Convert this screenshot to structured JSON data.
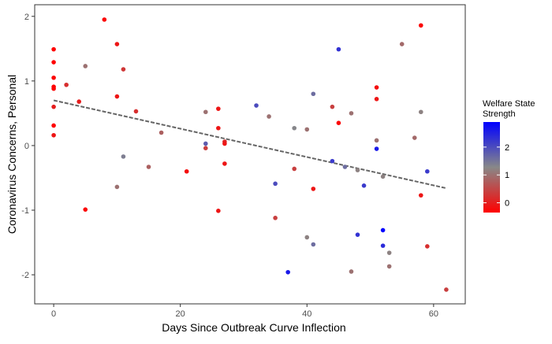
{
  "chart_data": {
    "type": "scatter",
    "title": "",
    "xlabel": "Days Since Outbreak Curve Inflection",
    "ylabel": "Coronavirus Concerns, Personal",
    "xlim": [
      -3,
      65
    ],
    "ylim": [
      -2.45,
      2.18
    ],
    "x_ticks": [
      0,
      20,
      40,
      60
    ],
    "y_ticks": [
      -2,
      -1,
      0,
      1,
      2
    ],
    "grid": false,
    "legend": {
      "title_lines": [
        "Welfare State",
        "Strength"
      ],
      "ticks": [
        0,
        1,
        2
      ],
      "min": -0.35,
      "max": 2.9,
      "colors": {
        "low": "#FF0000",
        "mid": "#888888",
        "high": "#0000FF"
      },
      "placement": "right"
    },
    "trend": {
      "style": "dashed",
      "color": "#666666",
      "x": [
        0,
        62
      ],
      "y": [
        0.7,
        -0.66
      ]
    },
    "points": [
      {
        "x": 0,
        "y": 1.49,
        "c": -0.35
      },
      {
        "x": 0,
        "y": 1.29,
        "c": -0.35
      },
      {
        "x": 0,
        "y": 1.05,
        "c": -0.3
      },
      {
        "x": 0,
        "y": 0.91,
        "c": -0.35
      },
      {
        "x": 0,
        "y": 0.88,
        "c": -0.3
      },
      {
        "x": 0,
        "y": 0.6,
        "c": 0.0
      },
      {
        "x": 0,
        "y": 0.31,
        "c": -0.35
      },
      {
        "x": 0,
        "y": 0.16,
        "c": -0.1
      },
      {
        "x": 2,
        "y": 0.94,
        "c": 0.2
      },
      {
        "x": 4,
        "y": 0.68,
        "c": 0.0
      },
      {
        "x": 5,
        "y": 1.23,
        "c": 1.0
      },
      {
        "x": 5,
        "y": -0.99,
        "c": -0.3
      },
      {
        "x": 8,
        "y": 1.95,
        "c": -0.3
      },
      {
        "x": 10,
        "y": 1.57,
        "c": -0.1
      },
      {
        "x": 10,
        "y": 0.76,
        "c": -0.1
      },
      {
        "x": 10,
        "y": -0.64,
        "c": 1.0
      },
      {
        "x": 11,
        "y": 1.18,
        "c": 0.3
      },
      {
        "x": 11,
        "y": -0.17,
        "c": 1.4
      },
      {
        "x": 13,
        "y": 0.53,
        "c": 0.2
      },
      {
        "x": 15,
        "y": -0.33,
        "c": 0.8
      },
      {
        "x": 17,
        "y": 0.2,
        "c": 0.8
      },
      {
        "x": 21,
        "y": -0.4,
        "c": -0.2
      },
      {
        "x": 24,
        "y": 0.52,
        "c": 1.0
      },
      {
        "x": 24,
        "y": 0.03,
        "c": 1.8
      },
      {
        "x": 24,
        "y": -0.04,
        "c": 0.4
      },
      {
        "x": 26,
        "y": 0.57,
        "c": -0.1
      },
      {
        "x": 26,
        "y": 0.27,
        "c": -0.1
      },
      {
        "x": 26,
        "y": -1.01,
        "c": -0.1
      },
      {
        "x": 27,
        "y": 0.06,
        "c": 0.1
      },
      {
        "x": 27,
        "y": 0.03,
        "c": -0.1
      },
      {
        "x": 27,
        "y": -0.28,
        "c": -0.1
      },
      {
        "x": 32,
        "y": 0.62,
        "c": 2.0
      },
      {
        "x": 34,
        "y": 0.45,
        "c": 1.0
      },
      {
        "x": 35,
        "y": -0.59,
        "c": 2.0
      },
      {
        "x": 35,
        "y": -1.12,
        "c": 0.4
      },
      {
        "x": 37,
        "y": -1.96,
        "c": 2.6
      },
      {
        "x": 38,
        "y": 0.27,
        "c": 1.3
      },
      {
        "x": 38,
        "y": -0.36,
        "c": 0.4
      },
      {
        "x": 40,
        "y": 0.25,
        "c": 1.0
      },
      {
        "x": 40,
        "y": -1.42,
        "c": 1.2
      },
      {
        "x": 41,
        "y": 0.8,
        "c": 1.6
      },
      {
        "x": 41,
        "y": -0.67,
        "c": -0.1
      },
      {
        "x": 41,
        "y": -1.53,
        "c": 1.6
      },
      {
        "x": 44,
        "y": 0.6,
        "c": 0.4
      },
      {
        "x": 44,
        "y": -0.24,
        "c": 2.2
      },
      {
        "x": 45,
        "y": 1.49,
        "c": 2.3
      },
      {
        "x": 45,
        "y": 0.35,
        "c": -0.3
      },
      {
        "x": 46,
        "y": -0.33,
        "c": 1.6
      },
      {
        "x": 47,
        "y": 0.5,
        "c": 1.0
      },
      {
        "x": 47,
        "y": -1.95,
        "c": 1.0
      },
      {
        "x": 48,
        "y": -0.38,
        "c": 1.2
      },
      {
        "x": 48,
        "y": -1.38,
        "c": 2.3
      },
      {
        "x": 49,
        "y": -0.62,
        "c": 2.2
      },
      {
        "x": 51,
        "y": 0.9,
        "c": -0.2
      },
      {
        "x": 51,
        "y": 0.72,
        "c": -0.1
      },
      {
        "x": 51,
        "y": 0.08,
        "c": 1.0
      },
      {
        "x": 51,
        "y": -0.05,
        "c": 2.6
      },
      {
        "x": 52,
        "y": -0.48,
        "c": 1.2
      },
      {
        "x": 52,
        "y": -1.31,
        "c": 2.9
      },
      {
        "x": 52,
        "y": -1.55,
        "c": 2.4
      },
      {
        "x": 53,
        "y": -1.66,
        "c": 1.2
      },
      {
        "x": 53,
        "y": -1.87,
        "c": 1.0
      },
      {
        "x": 55,
        "y": 1.57,
        "c": 0.9
      },
      {
        "x": 57,
        "y": 0.12,
        "c": 0.9
      },
      {
        "x": 58,
        "y": 1.86,
        "c": -0.3
      },
      {
        "x": 58,
        "y": 0.52,
        "c": 1.2
      },
      {
        "x": 58,
        "y": -0.77,
        "c": -0.1
      },
      {
        "x": 59,
        "y": -0.4,
        "c": 2.2
      },
      {
        "x": 59,
        "y": -1.56,
        "c": 0.2
      },
      {
        "x": 62,
        "y": -2.23,
        "c": 0.4
      }
    ]
  }
}
